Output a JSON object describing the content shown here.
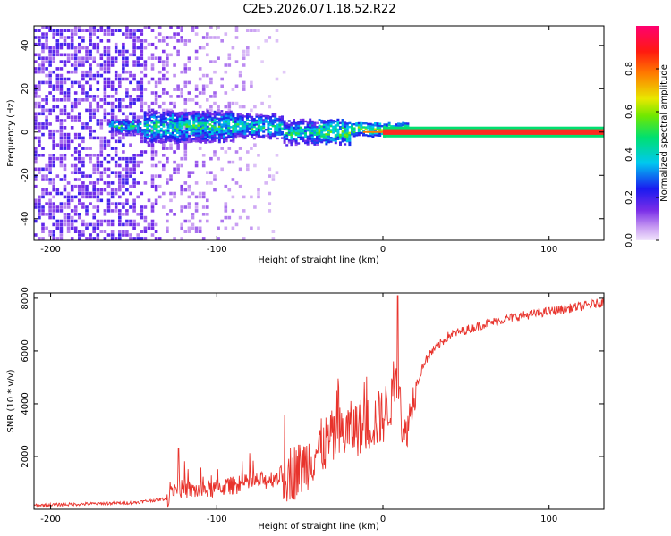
{
  "title": "C2E5.2026.071.18.52.R22",
  "spectrogram": {
    "type": "heatmap",
    "xlabel": "Height of straight line (km)",
    "ylabel": "Frequency (Hz)",
    "xlim": [
      -210,
      133
    ],
    "ylim": [
      -50,
      49
    ],
    "xticks": [
      -200,
      -100,
      0,
      100
    ],
    "yticks": [
      -40,
      -20,
      0,
      20,
      40
    ],
    "colorbar": {
      "label": "Normalized spectral amplitude",
      "range": [
        0.0,
        1.0
      ],
      "ticks": [
        0.0,
        0.2,
        0.4,
        0.6,
        0.8
      ],
      "tick_labels": [
        "0.0",
        "0.2",
        "0.4",
        "0.6",
        "0.8"
      ]
    },
    "features": [
      {
        "desc": "broadband noise",
        "x_range": [
          -210,
          -145
        ],
        "amplitude": 0.15
      },
      {
        "desc": "fading noise",
        "x_range": [
          -145,
          -60
        ],
        "amplitude": 0.05
      },
      {
        "desc": "signal band near 0 Hz",
        "x_range": [
          -165,
          15
        ],
        "amplitude": 0.45
      },
      {
        "desc": "steady carrier at 0 Hz",
        "x_range": [
          0,
          133
        ],
        "amplitude": 1.0
      }
    ]
  },
  "snr": {
    "type": "line",
    "xlabel": "Height of straight line (km)",
    "ylabel": "SNR (10 * v/v)",
    "xlim": [
      -210,
      133
    ],
    "ylim": [
      0,
      8200
    ],
    "xticks": [
      -200,
      -100,
      0,
      100
    ],
    "yticks": [
      2000,
      4000,
      6000,
      8000
    ],
    "color": "#e8332c",
    "series": {
      "name": "SNR",
      "x": [
        -210,
        -180,
        -150,
        -130,
        -125,
        -110,
        -90,
        -70,
        -50,
        -40,
        -30,
        -20,
        -10,
        0,
        5,
        10,
        12,
        15,
        20,
        25,
        30,
        40,
        60,
        80,
        100,
        120,
        133
      ],
      "y": [
        150,
        200,
        250,
        400,
        800,
        700,
        900,
        1100,
        1500,
        2200,
        2700,
        3000,
        3200,
        3500,
        4200,
        5000,
        2500,
        3200,
        4700,
        5600,
        6000,
        6600,
        7000,
        7300,
        7500,
        7700,
        7850
      ]
    }
  }
}
